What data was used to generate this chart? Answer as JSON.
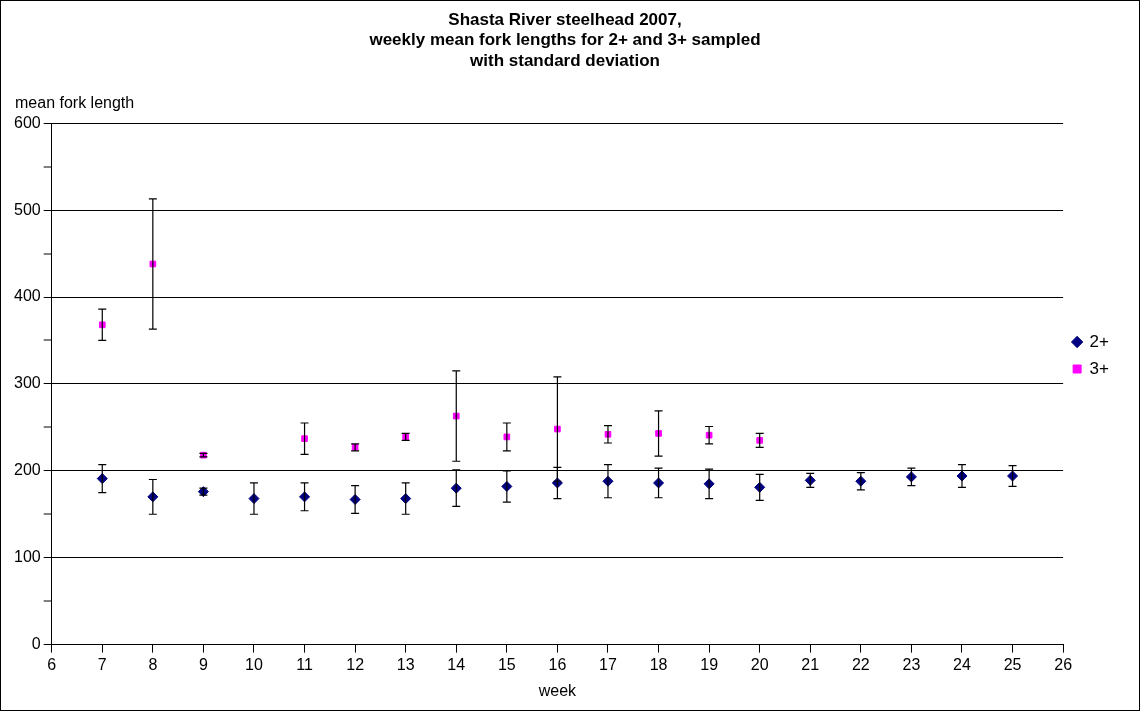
{
  "chart_data": {
    "type": "scatter",
    "title": "Shasta River steelhead 2007,\nweekly mean fork lengths for 2+ and 3+ sampled\nwith standard deviation",
    "xlabel": "week",
    "ylabel": "mean fork length",
    "x": [
      7,
      8,
      9,
      10,
      11,
      12,
      13,
      14,
      15,
      16,
      17,
      18,
      19,
      20,
      21,
      22,
      23,
      24,
      25
    ],
    "series": [
      {
        "name": "2+",
        "color": "#000080",
        "marker": "diamond",
        "values": [
          191,
          170,
          176,
          168,
          170,
          167,
          168,
          180,
          182,
          186,
          188,
          186,
          185,
          181,
          189,
          188,
          193,
          194,
          194
        ],
        "errors": [
          16,
          20,
          4,
          18,
          16,
          16,
          18,
          21,
          18,
          18,
          19,
          17,
          17,
          15,
          8,
          10,
          10,
          13,
          12
        ]
      },
      {
        "name": "3+",
        "color": "#ff00ff",
        "marker": "square",
        "values": [
          368,
          438,
          218,
          null,
          237,
          227,
          239,
          263,
          239,
          248,
          242,
          243,
          241,
          235,
          null,
          null,
          null,
          null,
          null
        ],
        "errors": [
          18,
          75,
          2,
          null,
          18,
          4,
          4,
          52,
          16,
          60,
          10,
          26,
          10,
          8,
          null,
          null,
          null,
          null,
          null
        ]
      }
    ],
    "xlim": [
      6,
      26
    ],
    "xticks": [
      6,
      7,
      8,
      9,
      10,
      11,
      12,
      13,
      14,
      15,
      16,
      17,
      18,
      19,
      20,
      21,
      22,
      23,
      24,
      25,
      26
    ],
    "ylim": [
      0,
      600
    ],
    "yticks": [
      0,
      {
        "value": 50,
        "label": null
      },
      100,
      {
        "value": 150,
        "label": null
      },
      200,
      {
        "value": 250,
        "label": null
      },
      300,
      {
        "value": 350,
        "label": null
      },
      400,
      {
        "value": 450,
        "label": null
      },
      500,
      {
        "value": 550,
        "label": null
      },
      600
    ],
    "grid": "y",
    "legend": "right"
  }
}
